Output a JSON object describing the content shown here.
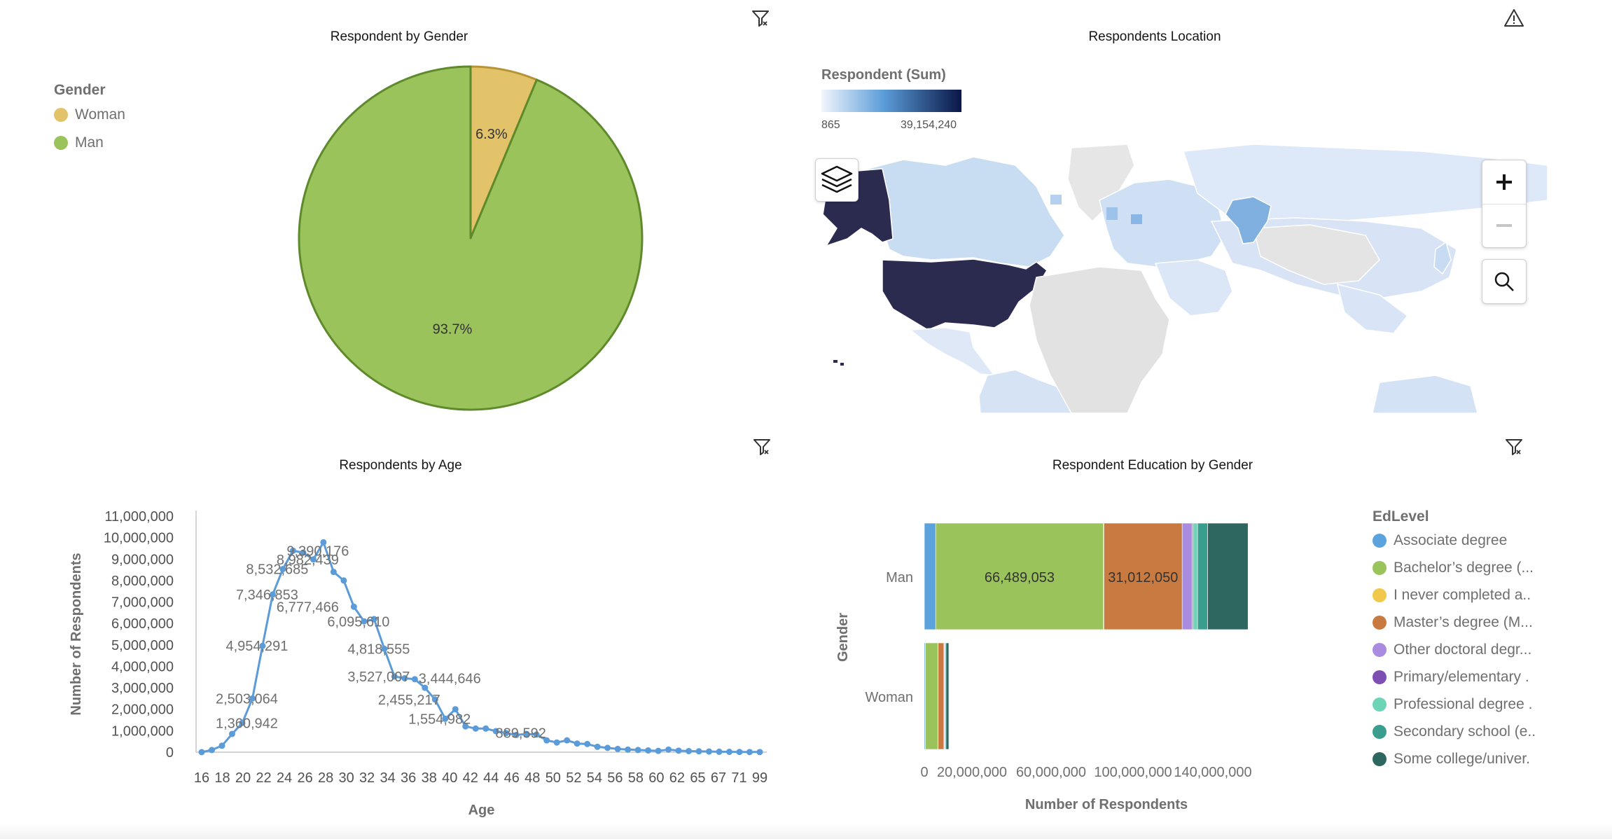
{
  "pie_panel": {
    "title": "Respondent by Gender",
    "legend_title": "Gender",
    "legend": [
      {
        "label": "Woman",
        "color": "#e2c36a"
      },
      {
        "label": "Man",
        "color": "#9bc35b"
      }
    ],
    "filter_icon": "filter-icon"
  },
  "map_panel": {
    "title": "Respondents Location",
    "legend_title": "Respondent (Sum)",
    "legend_min": "865",
    "legend_max": "39,154,240",
    "gradient_colors": [
      "#f2f6fd",
      "#5a9bd8",
      "#0a1646"
    ],
    "highlight_color": "#2b2a4f",
    "warning_icon": "warning-icon",
    "layers_icon": "layers-icon",
    "zoom_in_icon": "plus-icon",
    "zoom_out_icon": "minus-icon",
    "search_icon": "search-icon"
  },
  "age_panel": {
    "title": "Respondents by Age",
    "filter_icon": "filter-icon"
  },
  "edu_panel": {
    "title": "Respondent Education by Gender",
    "legend_title": "EdLevel",
    "legend": [
      {
        "label": "Associate degree",
        "color": "#5aa3dc"
      },
      {
        "label": "Bachelor’s degree (...",
        "color": "#9bc35b"
      },
      {
        "label": "I never completed a..",
        "color": "#f0c84a"
      },
      {
        "label": "Master’s degree (M...",
        "color": "#c97a40"
      },
      {
        "label": "Other doctoral degr...",
        "color": "#a98be0"
      },
      {
        "label": "Primary/elementary .",
        "color": "#7e4fb3"
      },
      {
        "label": "Professional degree .",
        "color": "#6ed4b8"
      },
      {
        "label": "Secondary school (e..",
        "color": "#3a9e8e"
      },
      {
        "label": "Some college/univer.",
        "color": "#2e6660"
      }
    ],
    "filter_icon": "filter-icon"
  },
  "chart_data": [
    {
      "type": "pie",
      "title": "Respondent by Gender",
      "categories": [
        "Woman",
        "Man"
      ],
      "values": [
        6.3,
        93.7
      ],
      "labels": [
        "6.3%",
        "93.7%"
      ],
      "colors": [
        "#e2c36a",
        "#9bc35b"
      ],
      "legend": "top-left"
    },
    {
      "type": "line",
      "title": "Respondents by Age",
      "xlabel": "Age",
      "ylabel": "Number of Respondents",
      "ylim": [
        0,
        11000000
      ],
      "yticks": [
        "0",
        "1,000,000",
        "2,000,000",
        "3,000,000",
        "4,000,000",
        "5,000,000",
        "6,000,000",
        "7,000,000",
        "8,000,000",
        "9,000,000",
        "10,000,000",
        "11,000,000"
      ],
      "xticks": [
        "16",
        "18",
        "20",
        "22",
        "24",
        "26",
        "28",
        "30",
        "32",
        "34",
        "36",
        "38",
        "40",
        "42",
        "44",
        "46",
        "48",
        "50",
        "52",
        "54",
        "56",
        "58",
        "60",
        "62",
        "65",
        "67",
        "71",
        "99"
      ],
      "x": [
        16,
        17,
        18,
        19,
        20,
        21,
        22,
        23,
        24,
        25,
        26,
        27,
        28,
        29,
        30,
        31,
        32,
        33,
        34,
        35,
        36,
        37,
        38,
        39,
        40,
        41,
        42,
        43,
        44,
        45,
        46,
        47,
        48,
        49,
        50,
        51,
        52,
        53,
        54,
        55,
        56,
        57,
        58,
        59,
        60,
        61,
        62,
        63,
        64,
        65,
        66,
        67,
        68,
        69,
        71,
        99
      ],
      "values": [
        0,
        100000,
        300000,
        850000,
        1360942,
        2503064,
        4954291,
        7346853,
        8532685,
        9390176,
        9300000,
        8982439,
        9780000,
        8400000,
        8000000,
        6777466,
        6095610,
        6200000,
        4818555,
        3527007,
        3444646,
        3400000,
        3000000,
        2455217,
        1554982,
        2000000,
        1200000,
        1100000,
        1100000,
        980000,
        889592,
        800000,
        850000,
        820000,
        550000,
        450000,
        550000,
        400000,
        380000,
        250000,
        200000,
        150000,
        120000,
        100000,
        80000,
        60000,
        120000,
        70000,
        50000,
        40000,
        30000,
        20000,
        15000,
        10000,
        5000,
        5000
      ],
      "series": [
        {
          "name": "",
          "color": "#5a9bd8"
        }
      ],
      "data_labels": [
        {
          "x": 28,
          "y": 9390176,
          "text": "9,390,176"
        },
        {
          "x": 24,
          "y": 8532685,
          "text": "8,532,685"
        },
        {
          "x": 27,
          "y": 8982439,
          "text": "8,982,439"
        },
        {
          "x": 23,
          "y": 7346853,
          "text": "7,346,853"
        },
        {
          "x": 27,
          "y": 6777466,
          "text": "6,777,466"
        },
        {
          "x": 32,
          "y": 6095610,
          "text": "6,095,610"
        },
        {
          "x": 22,
          "y": 4954291,
          "text": "4,954,291"
        },
        {
          "x": 34,
          "y": 4818555,
          "text": "4,818,555"
        },
        {
          "x": 34,
          "y": 3527007,
          "text": "3,527,007"
        },
        {
          "x": 41,
          "y": 3444646,
          "text": "3,444,646"
        },
        {
          "x": 21,
          "y": 2503064,
          "text": "2,503,064"
        },
        {
          "x": 37,
          "y": 2455217,
          "text": "2,455,217"
        },
        {
          "x": 21,
          "y": 1360942,
          "text": "1,360,942"
        },
        {
          "x": 40,
          "y": 1554982,
          "text": "1,554,982"
        },
        {
          "x": 48,
          "y": 889592,
          "text": "889,592"
        }
      ],
      "grid": false
    },
    {
      "type": "bar",
      "orientation": "horizontal",
      "stacked": true,
      "title": "Respondent Education by Gender",
      "xlabel": "Number of Respondents",
      "ylabel": "Gender",
      "categories": [
        "Man",
        "Woman"
      ],
      "xlim": [
        0,
        140000000
      ],
      "xticks": [
        "0",
        "20,000,000",
        "60,000,000",
        "100,000,000",
        "140,000,000"
      ],
      "series": [
        {
          "name": "Associate degree",
          "values": [
            4500000,
            400000
          ]
        },
        {
          "name": "Bachelor’s degree (...",
          "values": [
            66489053,
            5000000
          ]
        },
        {
          "name": "I never completed a..",
          "values": [
            200000,
            50000
          ]
        },
        {
          "name": "Master’s degree (M...",
          "values": [
            31012050,
            2300000
          ]
        },
        {
          "name": "Other doctoral degr...",
          "values": [
            4000000,
            300000
          ]
        },
        {
          "name": "Primary/elementary .",
          "values": [
            400000,
            50000
          ]
        },
        {
          "name": "Professional degree .",
          "values": [
            1700000,
            150000
          ]
        },
        {
          "name": "Secondary school (e..",
          "values": [
            4000000,
            350000
          ]
        },
        {
          "name": "Some college/univer.",
          "values": [
            16000000,
            1100000
          ]
        }
      ],
      "data_labels": [
        {
          "category": "Man",
          "series": "Bachelor’s degree (...",
          "text": "66,489,053"
        },
        {
          "category": "Man",
          "series": "Master’s degree (M...",
          "text": "31,012,050"
        }
      ],
      "legend": "right"
    }
  ]
}
